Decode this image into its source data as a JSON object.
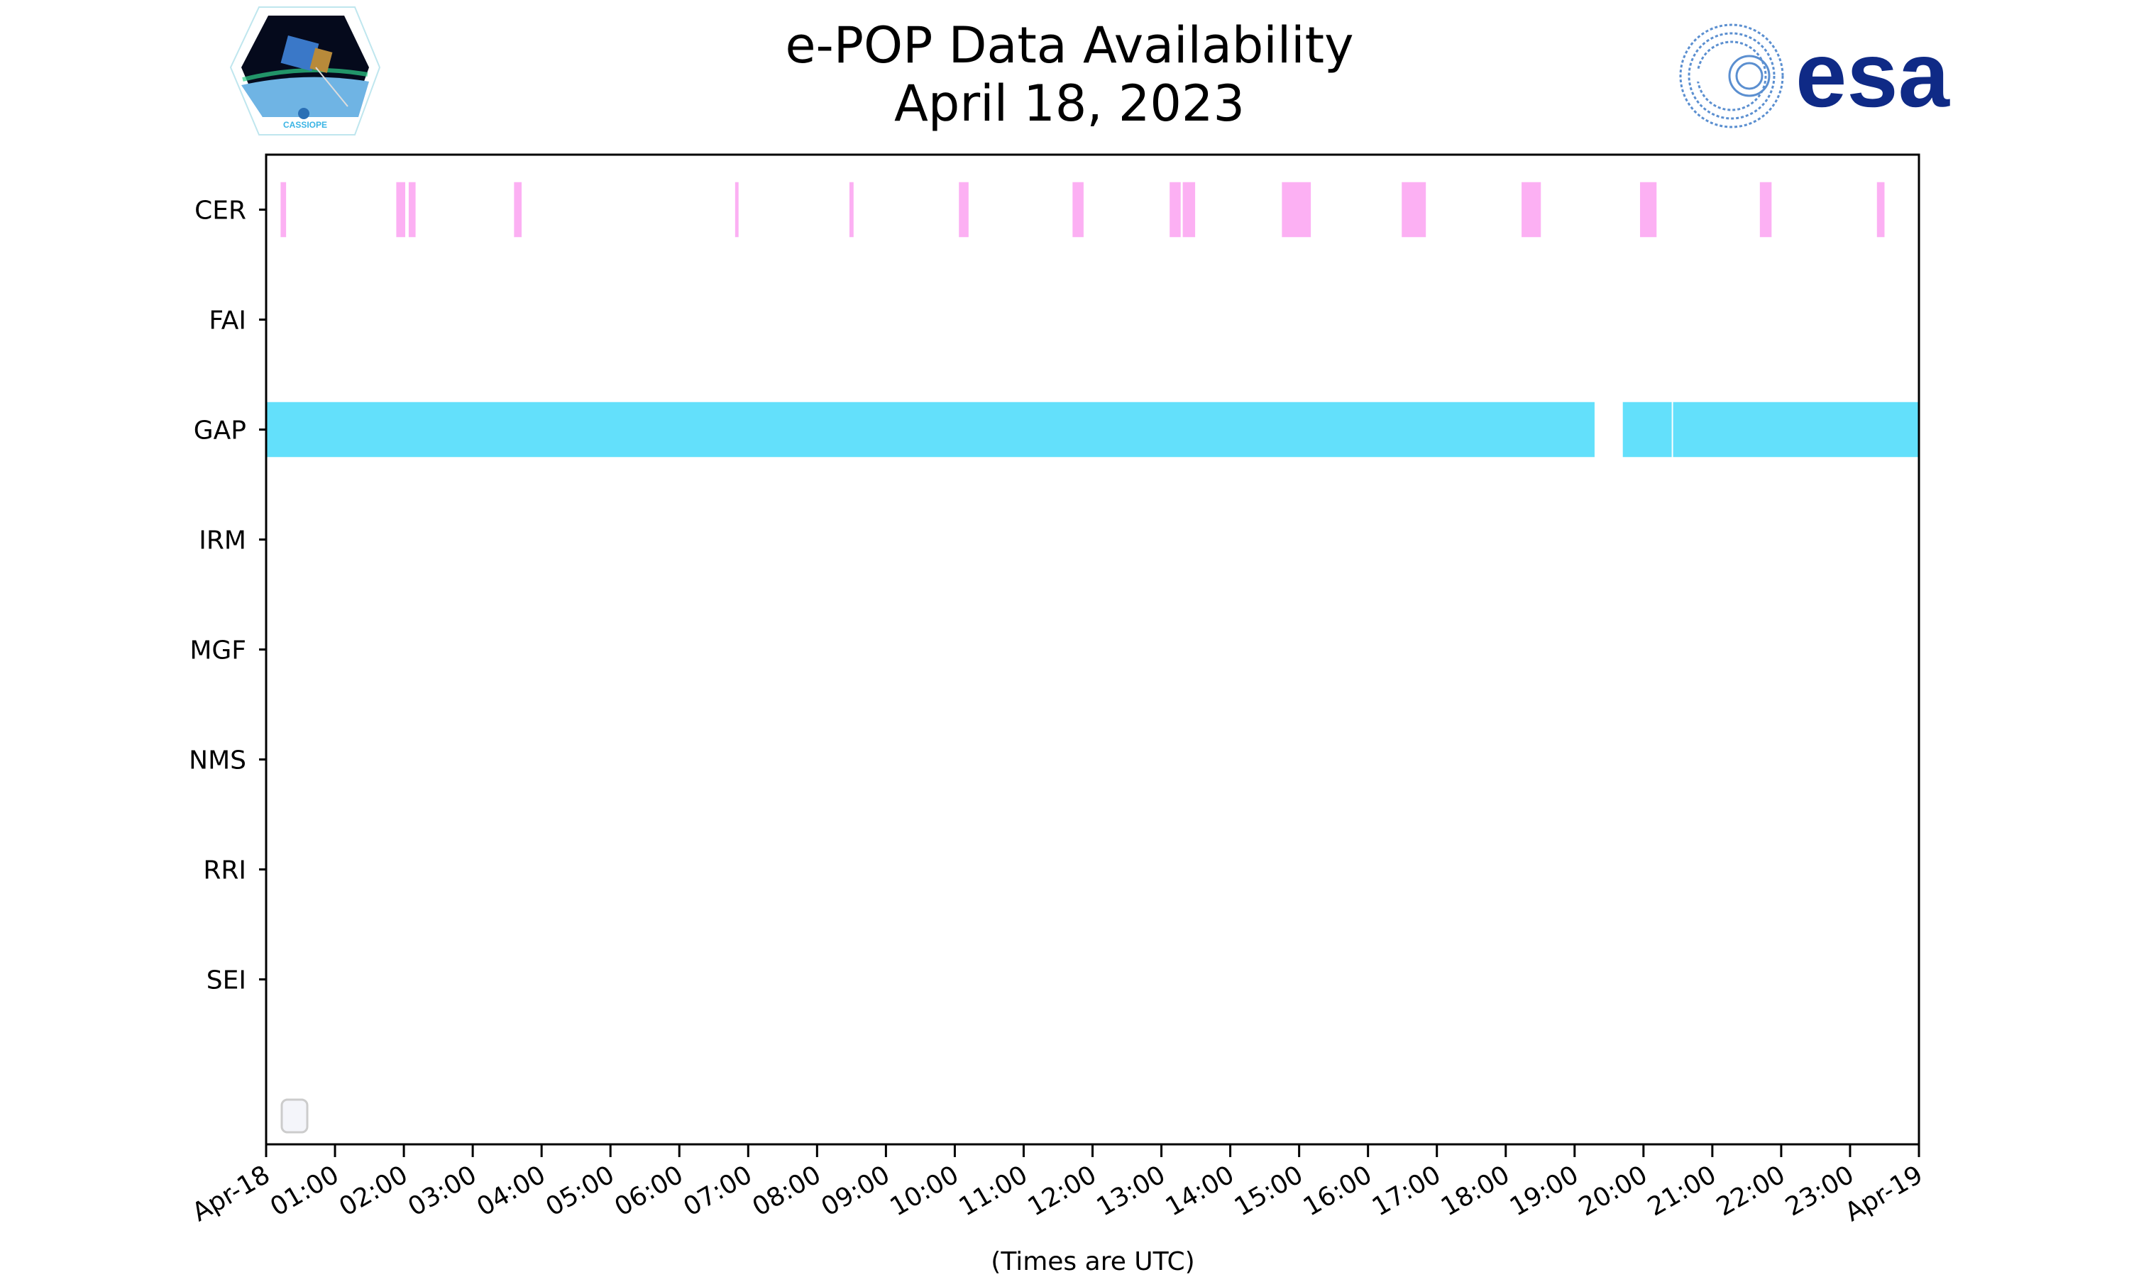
{
  "chart_data": {
    "type": "timeline",
    "title": "e-POP Data Availability",
    "subtitle": "April 18, 2023",
    "xlabel": "(Times are UTC)",
    "ylabel": "",
    "xlim_hours": [
      0,
      24
    ],
    "x_tick_labels": [
      "Apr-18",
      "01:00",
      "02:00",
      "03:00",
      "04:00",
      "05:00",
      "06:00",
      "07:00",
      "08:00",
      "09:00",
      "10:00",
      "11:00",
      "12:00",
      "13:00",
      "14:00",
      "15:00",
      "16:00",
      "17:00",
      "18:00",
      "19:00",
      "20:00",
      "21:00",
      "22:00",
      "23:00",
      "Apr-19"
    ],
    "categories": [
      "CER",
      "FAI",
      "GAP",
      "IRM",
      "MGF",
      "NMS",
      "RRI",
      "SEI"
    ],
    "ylim": [
      8.5,
      -0.5
    ],
    "grid": false,
    "legend": {
      "placement": "lower-left",
      "entries": []
    },
    "series": [
      {
        "name": "CER",
        "color": "#fcb0f3",
        "intervals_hours": [
          [
            0.21,
            0.29
          ],
          [
            1.89,
            2.02
          ],
          [
            2.07,
            2.17
          ],
          [
            3.6,
            3.71
          ],
          [
            6.81,
            6.86
          ],
          [
            8.47,
            8.53
          ],
          [
            10.06,
            10.2
          ],
          [
            11.71,
            11.87
          ],
          [
            13.12,
            13.28
          ],
          [
            13.31,
            13.49
          ],
          [
            14.75,
            15.17
          ],
          [
            16.49,
            16.84
          ],
          [
            18.23,
            18.51
          ],
          [
            19.95,
            20.19
          ],
          [
            21.69,
            21.86
          ],
          [
            23.39,
            23.5
          ]
        ]
      },
      {
        "name": "FAI",
        "color": "#cccccc",
        "intervals_hours": []
      },
      {
        "name": "GAP",
        "color": "#63e0fb",
        "intervals_hours": [
          [
            0,
            19.29
          ],
          [
            19.7,
            20.41
          ],
          [
            20.43,
            24
          ]
        ]
      },
      {
        "name": "IRM",
        "color": "#cccccc",
        "intervals_hours": []
      },
      {
        "name": "MGF",
        "color": "#cccccc",
        "intervals_hours": []
      },
      {
        "name": "NMS",
        "color": "#cccccc",
        "intervals_hours": []
      },
      {
        "name": "RRI",
        "color": "#cccccc",
        "intervals_hours": []
      },
      {
        "name": "SEI",
        "color": "#cccccc",
        "intervals_hours": []
      }
    ]
  },
  "logos": {
    "left": "CASSIOPE",
    "right": "esa"
  }
}
